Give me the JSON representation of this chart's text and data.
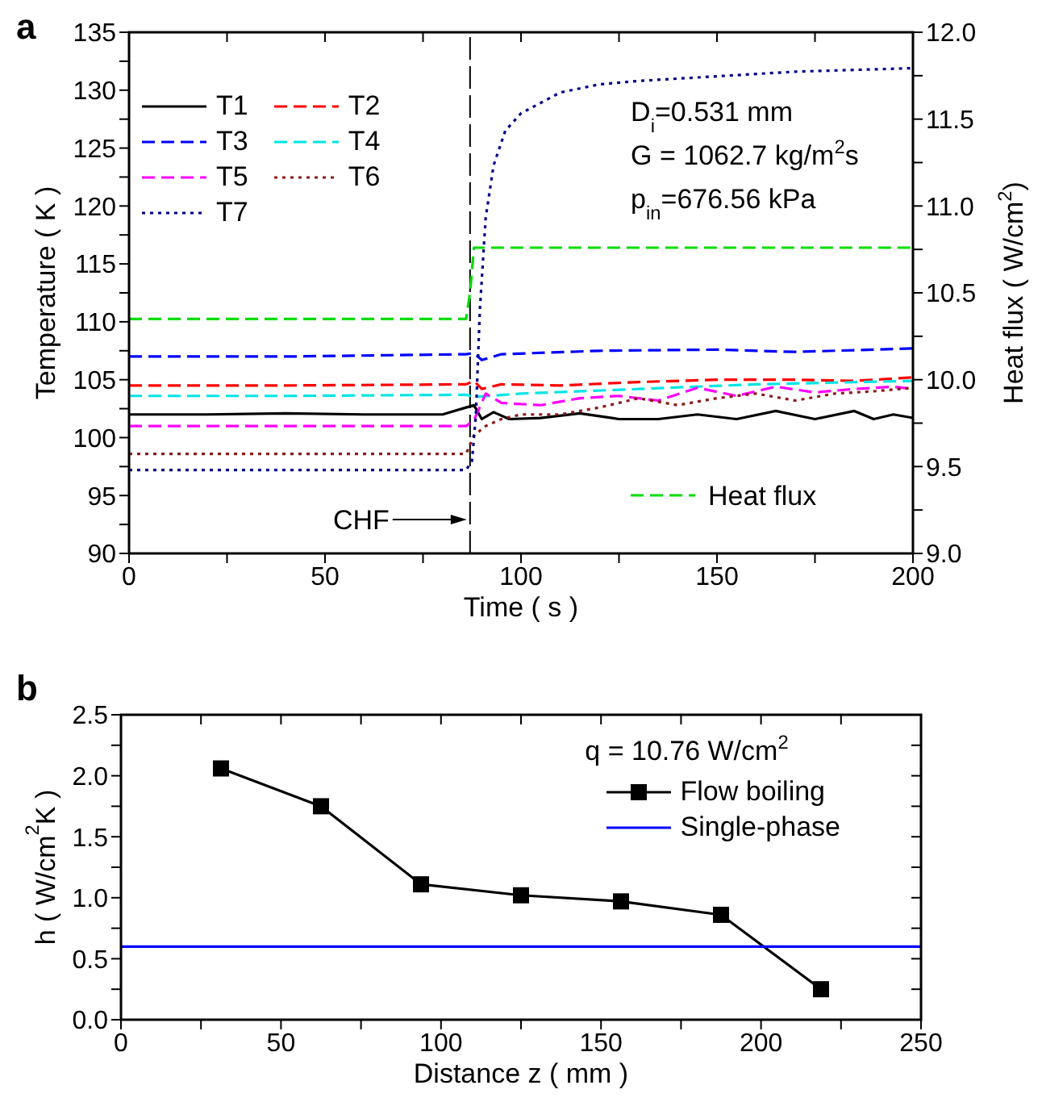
{
  "chart_data": [
    {
      "type": "line",
      "title": "a",
      "xlabel": "Time ( s )",
      "ylabel": "Temperature ( K )",
      "y2label": "Heat flux ( W/cm$^{2}$)",
      "xlim": [
        0,
        200
      ],
      "xticks": [
        0,
        {
          "value": 25,
          "label": null
        },
        50,
        {
          "value": 75,
          "label": null
        },
        100,
        {
          "value": 125,
          "label": null
        },
        150,
        {
          "value": 175,
          "label": null
        },
        200
      ],
      "ylim": [
        90,
        135
      ],
      "yticks": [
        90,
        {
          "value": 92.5,
          "label": null
        },
        95,
        {
          "value": 97.5,
          "label": null
        },
        100,
        {
          "value": 102.5,
          "label": null
        },
        105,
        {
          "value": 107.5,
          "label": null
        },
        110,
        {
          "value": 112.5,
          "label": null
        },
        115,
        {
          "value": 117.5,
          "label": null
        },
        120,
        {
          "value": 122.5,
          "label": null
        },
        125,
        {
          "value": 127.5,
          "label": null
        },
        130,
        {
          "value": 132.5,
          "label": null
        },
        135
      ],
      "y2lim": [
        9,
        12
      ],
      "y2ticks": [
        {
          "value": 9,
          "label": "9.0"
        },
        {
          "value": 9.25,
          "label": null
        },
        {
          "value": 9.5,
          "label": "9.5"
        },
        {
          "value": 9.75,
          "label": null
        },
        {
          "value": 10,
          "label": "10.0"
        },
        {
          "value": 10.25,
          "label": null
        },
        {
          "value": 10.5,
          "label": "10.5"
        },
        {
          "value": 10.75,
          "label": null
        },
        {
          "value": 11,
          "label": "11.0"
        },
        {
          "value": 11.25,
          "label": null
        },
        {
          "value": 11.5,
          "label": "11.5"
        },
        {
          "value": 11.75,
          "label": null
        },
        {
          "value": 12,
          "label": "12.0"
        }
      ],
      "legend": "left",
      "marker": "none",
      "series": [
        {
          "name": "T1",
          "color": "#000000",
          "line_style": "solid",
          "x": [
            0,
            20,
            40,
            60,
            80,
            86,
            88,
            90,
            93,
            97,
            105,
            115,
            125,
            135,
            145,
            155,
            165,
            175,
            185,
            190,
            195,
            200
          ],
          "values": [
            102,
            102,
            102.1,
            102,
            102,
            102.6,
            102.8,
            101.6,
            102.2,
            101.6,
            101.7,
            102.1,
            101.6,
            101.6,
            102,
            101.6,
            102.3,
            101.6,
            102.3,
            101.6,
            102,
            101.7
          ]
        },
        {
          "name": "T2",
          "color": "#ff0000",
          "line_style": "dashed",
          "x": [
            0,
            40,
            86,
            88,
            90,
            95,
            110,
            130,
            150,
            170,
            185,
            200
          ],
          "values": [
            104.5,
            104.5,
            104.6,
            104.9,
            104.2,
            104.6,
            104.5,
            104.8,
            105,
            105,
            104.9,
            105.2
          ]
        },
        {
          "name": "T3",
          "color": "#0000ff",
          "line_style": "dashed",
          "x": [
            0,
            40,
            86,
            88,
            90,
            95,
            120,
            150,
            170,
            200
          ],
          "values": [
            107,
            107,
            107.2,
            107.3,
            106.7,
            107.2,
            107.5,
            107.6,
            107.4,
            107.7
          ]
        },
        {
          "name": "T4",
          "color": "#00e5e5",
          "line_style": "dashed",
          "x": [
            0,
            40,
            86,
            88,
            92,
            100,
            130,
            160,
            200
          ],
          "values": [
            103.6,
            103.6,
            103.7,
            103.5,
            103.6,
            103.8,
            104.2,
            104.6,
            104.9
          ]
        },
        {
          "name": "T5",
          "color": "#ff00ff",
          "line_style": "dashed",
          "x": [
            0,
            40,
            86,
            88,
            91,
            95,
            105,
            115,
            125,
            135,
            145,
            155,
            165,
            175,
            185,
            195,
            200
          ],
          "values": [
            101,
            101,
            101,
            101.5,
            103.8,
            103,
            102.8,
            103.4,
            103.6,
            103.2,
            104.3,
            103.6,
            104.4,
            103.9,
            104.2,
            104.4,
            104.2
          ]
        },
        {
          "name": "T6",
          "color": "#8b1a1a",
          "line_style": "dotted",
          "x": [
            0,
            40,
            86,
            88,
            91,
            95,
            100,
            110,
            120,
            130,
            140,
            150,
            160,
            170,
            180,
            190,
            200
          ],
          "values": [
            98.6,
            98.6,
            98.6,
            100.2,
            101,
            101.6,
            102,
            102,
            102.6,
            103.4,
            102.8,
            103.4,
            103.8,
            103.2,
            103.8,
            104,
            104.3
          ]
        },
        {
          "name": "T7",
          "color": "#00008b",
          "line_style": "dotted",
          "x": [
            0,
            40,
            86,
            87.5,
            88.5,
            89.5,
            91,
            93,
            96,
            100,
            110,
            120,
            130,
            150,
            170,
            190,
            200
          ],
          "values": [
            97.2,
            97.2,
            97.2,
            98,
            102,
            111,
            119,
            123.5,
            126.5,
            128,
            129.8,
            130.5,
            130.8,
            131.2,
            131.6,
            131.8,
            131.9
          ]
        },
        {
          "name": "Heat flux",
          "color": "#00dd00",
          "line_style": "dashed",
          "axis": "y2",
          "x": [
            0,
            86,
            87,
            88,
            200
          ],
          "values": [
            10.35,
            10.35,
            10.5,
            10.76,
            10.76
          ]
        }
      ],
      "ref_lines": [
        {
          "axis": "x",
          "value": 87,
          "color": "#000000",
          "line_style": "dashed",
          "label": "CHF"
        }
      ],
      "annotations": [
        "D$_{i}$=0.531 mm",
        "G = 1062.7 kg/m$^{2}$s",
        "p$_{in}$=676.56 kPa"
      ]
    },
    {
      "type": "line",
      "title": "b",
      "xlabel": "Distance z ( mm )",
      "ylabel": "h ( W/cm$^{2}$K )",
      "xlim": [
        0,
        250
      ],
      "xticks": [
        0,
        {
          "value": 25,
          "label": null
        },
        50,
        {
          "value": 75,
          "label": null
        },
        100,
        {
          "value": 125,
          "label": null
        },
        150,
        {
          "value": 175,
          "label": null
        },
        200,
        {
          "value": 225,
          "label": null
        },
        250
      ],
      "ylim": [
        0,
        2.5
      ],
      "yticks": [
        {
          "value": 0,
          "label": "0.0"
        },
        {
          "value": 0.25,
          "label": null
        },
        {
          "value": 0.5,
          "label": "0.5"
        },
        {
          "value": 0.75,
          "label": null
        },
        {
          "value": 1,
          "label": "1.0"
        },
        {
          "value": 1.25,
          "label": null
        },
        {
          "value": 1.5,
          "label": "1.5"
        },
        {
          "value": 1.75,
          "label": null
        },
        {
          "value": 2,
          "label": "2.0"
        },
        {
          "value": 2.25,
          "label": null
        },
        {
          "value": 2.5,
          "label": "2.5"
        }
      ],
      "legend": "top right",
      "series": [
        {
          "name": "Flow boiling",
          "color": "#000000",
          "line_style": "solid",
          "marker": "square",
          "x": [
            31.25,
            62.5,
            93.75,
            125,
            156.25,
            187.5,
            218.75
          ],
          "values": [
            2.06,
            1.75,
            1.11,
            1.02,
            0.97,
            0.86,
            0.25
          ]
        },
        {
          "name": "Single-phase",
          "color": "#0000ff",
          "line_style": "solid",
          "marker": "none",
          "x": [
            0,
            250
          ],
          "values": [
            0.6,
            0.6
          ]
        }
      ],
      "annotations": [
        "q = 10.76 W/cm$^{2}$"
      ]
    }
  ]
}
